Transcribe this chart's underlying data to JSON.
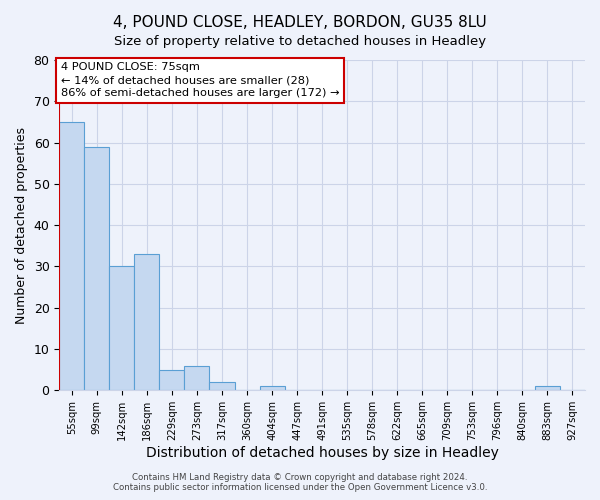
{
  "title": "4, POUND CLOSE, HEADLEY, BORDON, GU35 8LU",
  "subtitle": "Size of property relative to detached houses in Headley",
  "xlabel": "Distribution of detached houses by size in Headley",
  "ylabel": "Number of detached properties",
  "bar_labels": [
    "55sqm",
    "99sqm",
    "142sqm",
    "186sqm",
    "229sqm",
    "273sqm",
    "317sqm",
    "360sqm",
    "404sqm",
    "447sqm",
    "491sqm",
    "535sqm",
    "578sqm",
    "622sqm",
    "665sqm",
    "709sqm",
    "753sqm",
    "796sqm",
    "840sqm",
    "883sqm",
    "927sqm"
  ],
  "bar_values": [
    65,
    59,
    30,
    33,
    5,
    6,
    2,
    0,
    1,
    0,
    0,
    0,
    0,
    0,
    0,
    0,
    0,
    0,
    0,
    1,
    0
  ],
  "bar_color": "#c5d8f0",
  "bar_edge_color": "#5a9fd4",
  "ylim": [
    0,
    80
  ],
  "yticks": [
    0,
    10,
    20,
    30,
    40,
    50,
    60,
    70,
    80
  ],
  "annotation_title": "4 POUND CLOSE: 75sqm",
  "annotation_line1": "← 14% of detached houses are smaller (28)",
  "annotation_line2": "86% of semi-detached houses are larger (172) →",
  "red_line_color": "#cc0000",
  "footer1": "Contains HM Land Registry data © Crown copyright and database right 2024.",
  "footer2": "Contains public sector information licensed under the Open Government Licence v3.0.",
  "bg_color": "#eef2fb",
  "grid_color": "#ccd4e8",
  "title_fontsize": 11,
  "subtitle_fontsize": 9.5
}
